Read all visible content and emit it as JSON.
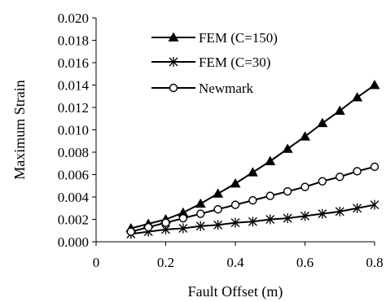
{
  "chart_data": {
    "type": "line",
    "title": "",
    "xlabel": "Fault Offset (m)",
    "ylabel": "Maximum Strain",
    "xlim": [
      0,
      0.8
    ],
    "ylim": [
      0,
      0.02
    ],
    "grid": false,
    "legend_position": "top-left",
    "x_ticks": [
      "0",
      "0.2",
      "0.4",
      "0.6",
      "0.8"
    ],
    "y_ticks": [
      "0.000",
      "0.002",
      "0.004",
      "0.006",
      "0.008",
      "0.010",
      "0.012",
      "0.014",
      "0.016",
      "0.018",
      "0.020"
    ],
    "x": [
      0.1,
      0.15,
      0.2,
      0.25,
      0.3,
      0.35,
      0.4,
      0.45,
      0.5,
      0.55,
      0.6,
      0.65,
      0.7,
      0.75,
      0.8
    ],
    "series": [
      {
        "name": "FEM (C=150)",
        "marker": "triangle",
        "color": "#000000",
        "values": [
          0.0012,
          0.0016,
          0.002,
          0.0026,
          0.0034,
          0.0043,
          0.0052,
          0.0062,
          0.0072,
          0.0083,
          0.0094,
          0.0106,
          0.0117,
          0.0129,
          0.014
        ]
      },
      {
        "name": "FEM (C=30)",
        "marker": "star",
        "color": "#000000",
        "values": [
          0.0007,
          0.0009,
          0.0011,
          0.0012,
          0.0014,
          0.0015,
          0.0017,
          0.0018,
          0.002,
          0.0021,
          0.0023,
          0.0025,
          0.0027,
          0.003,
          0.0033
        ]
      },
      {
        "name": "Newmark",
        "marker": "circle",
        "color": "#000000",
        "values": [
          0.0009,
          0.0013,
          0.0017,
          0.0021,
          0.0025,
          0.0029,
          0.0033,
          0.0037,
          0.0041,
          0.0045,
          0.0049,
          0.0054,
          0.0058,
          0.0063,
          0.0067
        ]
      }
    ]
  }
}
